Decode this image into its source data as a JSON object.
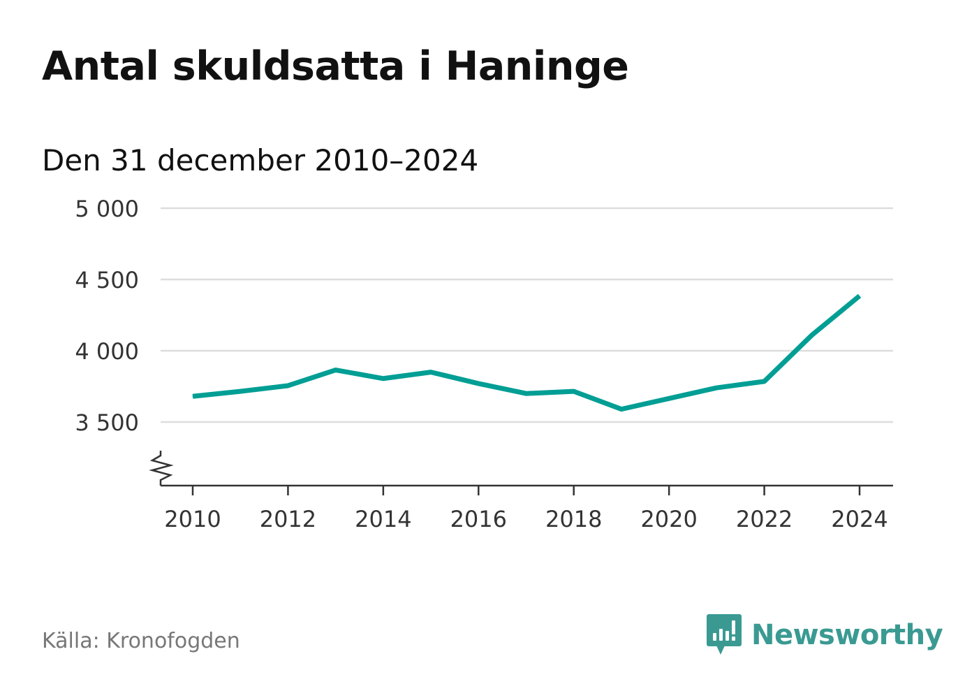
{
  "title": "Antal skuldsatta i Haninge",
  "subtitle": "Den 31 december 2010–2024",
  "source": "Källa: Kronofogden",
  "brand": "Newsworthy",
  "colors": {
    "line": "#009e94",
    "grid": "#dddddd",
    "axis": "#333333",
    "brand": "#3a9a92"
  },
  "chart_data": {
    "type": "line",
    "title": "Antal skuldsatta i Haninge",
    "subtitle": "Den 31 december 2010–2024",
    "xlabel": "",
    "ylabel": "",
    "x": [
      2010,
      2011,
      2012,
      2013,
      2014,
      2015,
      2016,
      2017,
      2018,
      2019,
      2020,
      2021,
      2022,
      2023,
      2024
    ],
    "series": [
      {
        "name": "Antal skuldsatta",
        "values": [
          3680,
          3715,
          3755,
          3865,
          3805,
          3850,
          3770,
          3700,
          3715,
          3590,
          3665,
          3740,
          3785,
          4110,
          4385
        ]
      }
    ],
    "ylim": [
      3050,
      5000
    ],
    "yticks": [
      3500,
      4000,
      4500,
      5000
    ],
    "ytick_labels": [
      "3 500",
      "4 000",
      "4 500",
      "5 000"
    ],
    "xticks": [
      2010,
      2012,
      2014,
      2016,
      2018,
      2020,
      2022,
      2024
    ],
    "xtick_labels": [
      "2010",
      "2012",
      "2014",
      "2016",
      "2018",
      "2020",
      "2022",
      "2024"
    ],
    "grid": true,
    "axis_break": true
  }
}
